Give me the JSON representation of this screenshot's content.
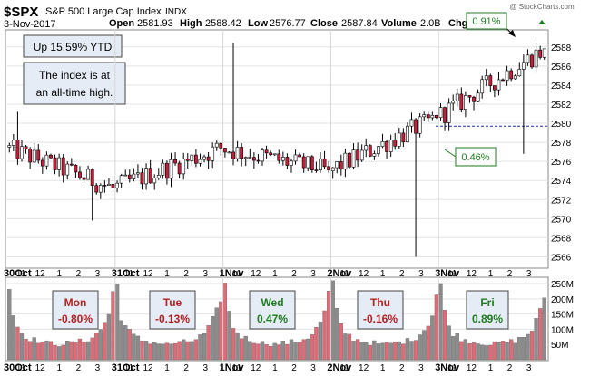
{
  "header": {
    "symbol": "$SPX",
    "name": "S&P 500 Large Cap Index",
    "exchange": "INDX",
    "date": "3-Nov-2017",
    "open_label": "Open",
    "open": "2581.93",
    "high_label": "High",
    "high": "2588.42",
    "low_label": "Low",
    "low": "2576.77",
    "close_label": "Close",
    "close": "2587.84",
    "volume_label": "Volume",
    "volume": "2.0B",
    "change_label": "Chg",
    "watermark": "@ StockCharts.com"
  },
  "notes": {
    "ytd": "Up 15.59% YTD",
    "ath_line1": "The index is at",
    "ath_line2": "an all-time high.",
    "start_pct": "0.46%",
    "end_pct": "0.91%"
  },
  "days": [
    {
      "name": "Mon",
      "pct": "-0.80%",
      "color": "#b22222"
    },
    {
      "name": "Tue",
      "pct": "-0.13%",
      "color": "#b22222"
    },
    {
      "name": "Wed",
      "pct": "0.47%",
      "color": "#1e7b1e"
    },
    {
      "name": "Thu",
      "pct": "-0.16%",
      "color": "#b22222"
    },
    {
      "name": "Fri",
      "pct": "0.89%",
      "color": "#1e7b1e"
    }
  ],
  "chart_data": {
    "type": "candlestick",
    "price_ticks": [
      2566,
      2568,
      2570,
      2572,
      2574,
      2576,
      2578,
      2580,
      2582,
      2584,
      2586,
      2588
    ],
    "price_ylim": [
      2565,
      2589.5
    ],
    "volume_ticks": [
      "50M",
      "100M",
      "150M",
      "200M",
      "250M"
    ],
    "volume_tick_values": [
      50,
      100,
      150,
      200,
      250
    ],
    "volume_ylim": [
      0,
      265
    ],
    "reference_line": 2579.7,
    "x_tick_labels": [
      "30Oct",
      "11",
      "12",
      "1",
      "2",
      "3",
      "31Oct",
      "11",
      "12",
      "1",
      "2",
      "3",
      "1Nov",
      "11",
      "12",
      "1",
      "2",
      "3",
      "2Nov",
      "11",
      "12",
      "1",
      "2",
      "3",
      "3Nov",
      "11",
      "12",
      "1",
      "2",
      "3"
    ],
    "colors": {
      "up": "#ffffff",
      "down": "#cc1a3a",
      "vol_up": "#8c8c8c",
      "vol_down": "#e06b78",
      "reference": "#1f2bb5"
    },
    "day_ranges": [
      {
        "open": 2577.5,
        "close": 2573.2,
        "high": 2581.2,
        "low": 2569.8
      },
      {
        "open": 2573.2,
        "close": 2577.4,
        "high": 2578.3,
        "low": 2570.2
      },
      {
        "open": 2577.4,
        "close": 2575.0,
        "high": 2588.4,
        "low": 2574.8
      },
      {
        "open": 2575.0,
        "close": 2580.6,
        "high": 2581.2,
        "low": 2566.0
      },
      {
        "open": 2580.6,
        "close": 2587.8,
        "high": 2588.4,
        "low": 2576.8
      }
    ],
    "candles_per_day": 26,
    "volume_day_profile": [
      245,
      150,
      110,
      90,
      78,
      70,
      65,
      62,
      58,
      55,
      55,
      52,
      50,
      52,
      55,
      55,
      58,
      60,
      62,
      68,
      75,
      85,
      100,
      125,
      150,
      215
    ]
  }
}
